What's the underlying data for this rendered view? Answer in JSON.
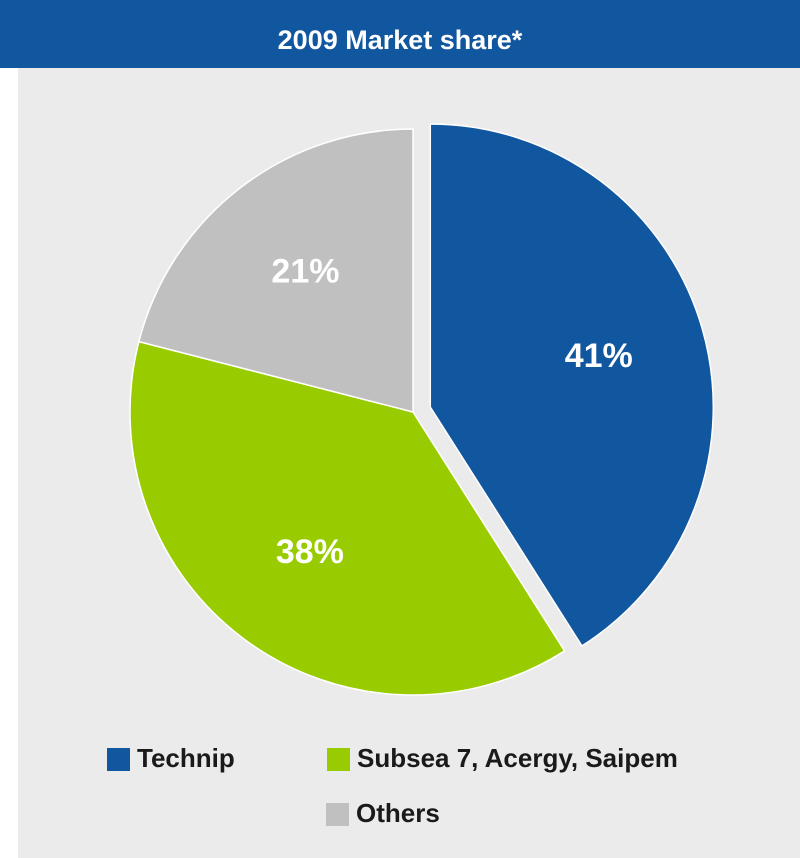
{
  "chart_data": {
    "type": "pie",
    "title": "2009 Market share*",
    "categories": [
      "Technip",
      "Subsea 7, Acergy, Saipem",
      "Others"
    ],
    "values": [
      41,
      38,
      21
    ],
    "value_labels": [
      "41%",
      "38%",
      "21%"
    ],
    "colors": [
      "#1157a0",
      "#99cc00",
      "#c0c0c0"
    ],
    "exploded": [
      true,
      false,
      false
    ]
  }
}
